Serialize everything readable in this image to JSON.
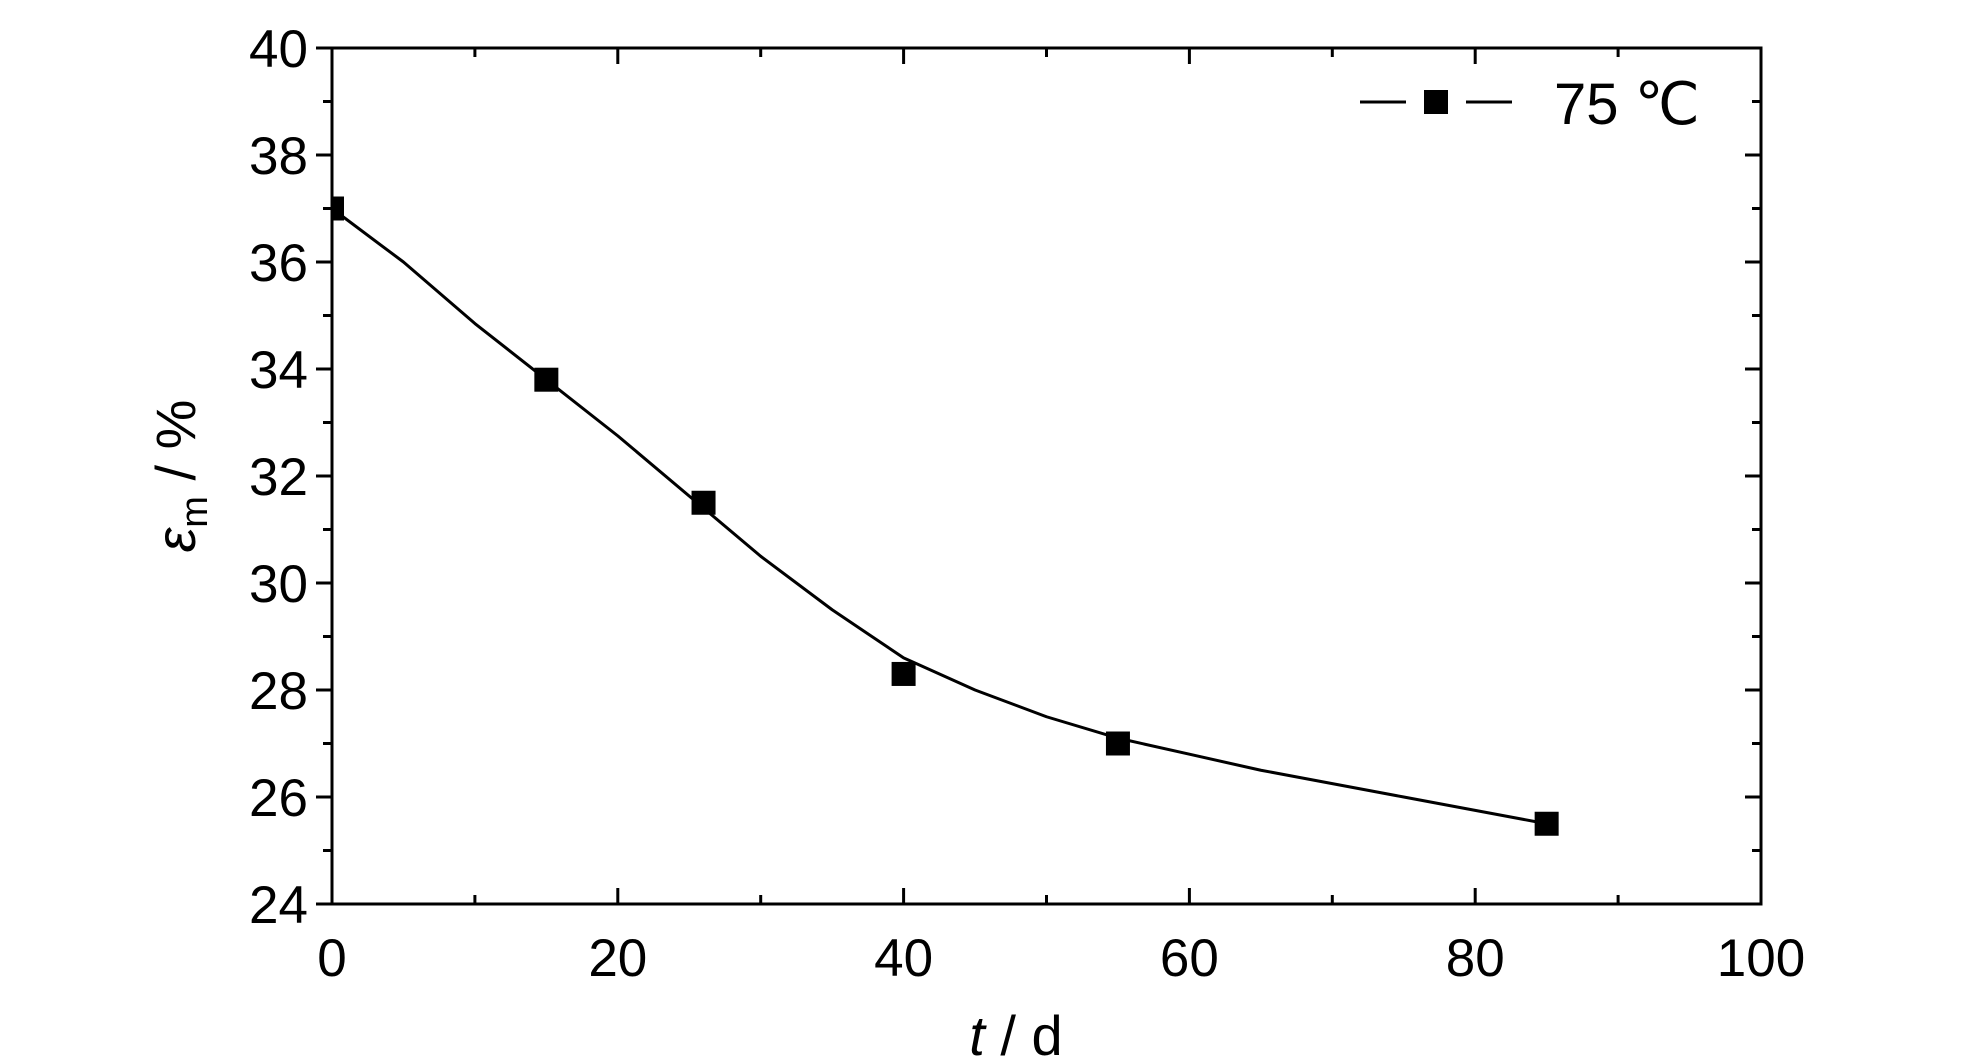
{
  "chart_data": {
    "type": "line",
    "title": "",
    "xlabel": {
      "var": "t",
      "unit": "d"
    },
    "ylabel": {
      "var": "ε",
      "sub": "m",
      "unit": "%"
    },
    "xlim": [
      0,
      100
    ],
    "ylim": [
      24,
      40
    ],
    "xticks": [
      0,
      20,
      40,
      60,
      80,
      100
    ],
    "yticks": [
      24,
      26,
      28,
      30,
      32,
      34,
      36,
      38,
      40
    ],
    "grid": false,
    "legend_position": "top-right",
    "series": [
      {
        "name": "75 ℃",
        "marker": "square",
        "color": "#000000",
        "x": [
          0,
          15,
          26,
          40,
          55,
          85
        ],
        "y": [
          37.0,
          33.8,
          31.5,
          28.3,
          27.0,
          25.5
        ],
        "fit_curve": {
          "x": [
            0,
            5,
            10,
            15,
            20,
            26,
            30,
            35,
            40,
            45,
            50,
            55,
            60,
            65,
            70,
            75,
            80,
            85
          ],
          "y": [
            37.0,
            36.0,
            34.85,
            33.8,
            32.75,
            31.4,
            30.5,
            29.5,
            28.6,
            28.0,
            27.5,
            27.1,
            26.8,
            26.5,
            26.25,
            26.0,
            25.75,
            25.5
          ]
        }
      }
    ]
  }
}
